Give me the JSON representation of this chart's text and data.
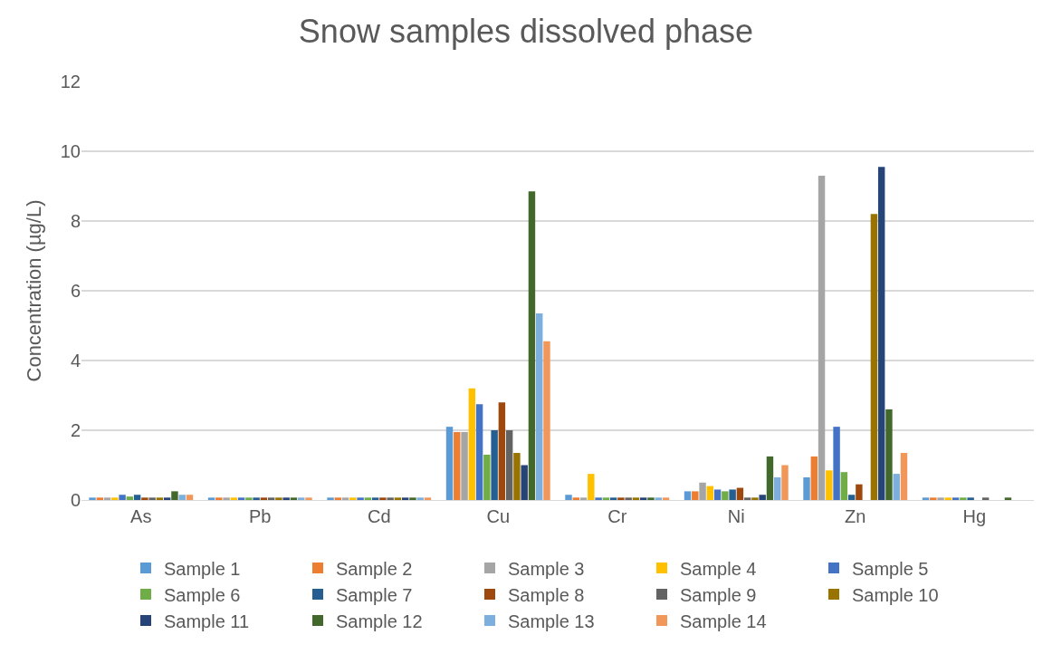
{
  "chart_data": {
    "type": "bar",
    "title": "Snow samples dissolved phase",
    "ylabel": "Concentration (µg/L)",
    "categories": [
      "As",
      "Pb",
      "Cd",
      "Cu",
      "Cr",
      "Ni",
      "Zn",
      "Hg"
    ],
    "ylim": [
      0,
      12
    ],
    "yticks": [
      0,
      2,
      4,
      6,
      8,
      10,
      12
    ],
    "grid": "y",
    "legend": "bottom",
    "series": [
      {
        "name": "Sample 1",
        "color": "#5b9bd5",
        "values": [
          0.07,
          0.07,
          0.07,
          2.1,
          0.15,
          0.25,
          0.65,
          0.07
        ]
      },
      {
        "name": "Sample 2",
        "color": "#ed7d31",
        "values": [
          0.07,
          0.07,
          0.07,
          1.95,
          0.07,
          0.25,
          1.25,
          0.07
        ]
      },
      {
        "name": "Sample 3",
        "color": "#a5a5a5",
        "values": [
          0.07,
          0.07,
          0.07,
          1.95,
          0.07,
          0.5,
          9.3,
          0.07
        ]
      },
      {
        "name": "Sample 4",
        "color": "#ffc000",
        "values": [
          0.07,
          0.07,
          0.07,
          3.2,
          0.75,
          0.4,
          0.85,
          0.07
        ]
      },
      {
        "name": "Sample 5",
        "color": "#4472c4",
        "values": [
          0.15,
          0.07,
          0.07,
          2.75,
          0.07,
          0.3,
          2.1,
          0.07
        ]
      },
      {
        "name": "Sample 6",
        "color": "#70ad47",
        "values": [
          0.1,
          0.07,
          0.07,
          1.3,
          0.07,
          0.25,
          0.8,
          0.07
        ]
      },
      {
        "name": "Sample 7",
        "color": "#255e91",
        "values": [
          0.15,
          0.07,
          0.07,
          2.0,
          0.07,
          0.3,
          0.15,
          0.07
        ]
      },
      {
        "name": "Sample 8",
        "color": "#9e480e",
        "values": [
          0.07,
          0.07,
          0.07,
          2.8,
          0.07,
          0.35,
          0.45,
          null
        ]
      },
      {
        "name": "Sample 9",
        "color": "#636363",
        "values": [
          0.07,
          0.07,
          0.07,
          2.0,
          0.07,
          0.07,
          null,
          0.07
        ]
      },
      {
        "name": "Sample 10",
        "color": "#997300",
        "values": [
          0.07,
          0.07,
          0.07,
          1.35,
          0.07,
          0.07,
          8.2,
          null
        ]
      },
      {
        "name": "Sample 11",
        "color": "#264478",
        "values": [
          0.07,
          0.07,
          0.07,
          1.0,
          0.07,
          0.15,
          9.55,
          null
        ]
      },
      {
        "name": "Sample 12",
        "color": "#43682b",
        "values": [
          0.25,
          0.07,
          0.07,
          8.85,
          0.07,
          1.25,
          2.6,
          0.07
        ]
      },
      {
        "name": "Sample 13",
        "color": "#7cafdd",
        "values": [
          0.15,
          0.07,
          0.07,
          5.35,
          0.07,
          0.65,
          0.75,
          null
        ]
      },
      {
        "name": "Sample 14",
        "color": "#f1975a",
        "values": [
          0.15,
          0.07,
          0.07,
          4.55,
          0.07,
          1.0,
          1.35,
          null
        ]
      }
    ]
  }
}
